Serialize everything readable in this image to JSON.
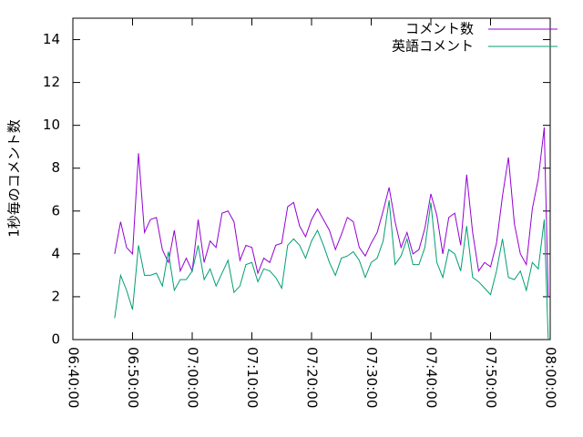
{
  "chart_data": {
    "type": "line",
    "ylabel": "1秒毎のコメント数",
    "x": [
      "06:47:00",
      "06:48:00",
      "06:49:00",
      "06:50:00",
      "06:51:00",
      "06:52:00",
      "06:53:00",
      "06:54:00",
      "06:55:00",
      "06:56:00",
      "06:57:00",
      "06:58:00",
      "06:59:00",
      "07:00:00",
      "07:01:00",
      "07:02:00",
      "07:03:00",
      "07:04:00",
      "07:05:00",
      "07:06:00",
      "07:07:00",
      "07:08:00",
      "07:09:00",
      "07:10:00",
      "07:11:00",
      "07:12:00",
      "07:13:00",
      "07:14:00",
      "07:15:00",
      "07:16:00",
      "07:17:00",
      "07:18:00",
      "07:19:00",
      "07:20:00",
      "07:21:00",
      "07:22:00",
      "07:23:00",
      "07:24:00",
      "07:25:00",
      "07:26:00",
      "07:27:00",
      "07:28:00",
      "07:29:00",
      "07:30:00",
      "07:31:00",
      "07:32:00",
      "07:33:00",
      "07:34:00",
      "07:35:00",
      "07:36:00",
      "07:37:00",
      "07:38:00",
      "07:39:00",
      "07:40:00",
      "07:41:00",
      "07:42:00",
      "07:43:00",
      "07:44:00",
      "07:45:00",
      "07:46:00",
      "07:47:00",
      "07:48:00",
      "07:49:00",
      "07:50:00",
      "07:51:00",
      "07:52:00",
      "07:53:00",
      "07:54:00",
      "07:55:00",
      "07:56:00",
      "07:57:00",
      "07:58:00",
      "07:59:00",
      "07:59:40"
    ],
    "series": [
      {
        "name": "コメント数",
        "color": "#9400d3",
        "values": [
          4.0,
          5.5,
          4.3,
          4.0,
          8.7,
          5.0,
          5.6,
          5.7,
          4.2,
          3.6,
          5.1,
          3.2,
          3.8,
          3.2,
          5.6,
          3.6,
          4.6,
          4.3,
          5.9,
          6.0,
          5.5,
          3.7,
          4.4,
          4.3,
          3.1,
          3.8,
          3.6,
          4.4,
          4.5,
          6.2,
          6.4,
          5.3,
          4.8,
          5.6,
          6.1,
          5.6,
          5.1,
          4.2,
          4.9,
          5.7,
          5.5,
          4.3,
          3.9,
          4.5,
          5.0,
          6.0,
          7.1,
          5.5,
          4.3,
          5.0,
          4.0,
          4.2,
          5.2,
          6.8,
          5.8,
          4.0,
          5.7,
          5.9,
          4.4,
          7.7,
          5.0,
          3.2,
          3.6,
          3.4,
          4.5,
          6.7,
          8.5,
          5.4,
          4.0,
          3.5,
          6.1,
          7.5,
          9.9,
          2.0
        ]
      },
      {
        "name": "英語コメント",
        "color": "#009e73",
        "values": [
          1.0,
          3.0,
          2.3,
          1.4,
          4.4,
          3.0,
          3.0,
          3.1,
          2.5,
          4.1,
          2.3,
          2.8,
          2.8,
          3.2,
          4.4,
          2.8,
          3.3,
          2.5,
          3.1,
          3.7,
          2.2,
          2.5,
          3.5,
          3.6,
          2.7,
          3.3,
          3.2,
          2.9,
          2.4,
          4.4,
          4.7,
          4.4,
          3.8,
          4.6,
          5.1,
          4.4,
          3.6,
          3.0,
          3.8,
          3.9,
          4.1,
          3.7,
          2.9,
          3.6,
          3.8,
          4.6,
          6.5,
          3.5,
          3.9,
          4.7,
          3.5,
          3.5,
          4.3,
          6.4,
          3.6,
          2.9,
          4.2,
          4.0,
          3.2,
          5.3,
          2.9,
          2.7,
          2.4,
          2.1,
          3.2,
          4.7,
          2.9,
          2.8,
          3.2,
          2.3,
          3.6,
          3.3,
          5.6,
          0.0
        ]
      }
    ],
    "xlim": [
      "06:40:00",
      "08:00:00"
    ],
    "xticks": [
      "06:40:00",
      "06:50:00",
      "07:00:00",
      "07:10:00",
      "07:20:00",
      "07:30:00",
      "07:40:00",
      "07:50:00",
      "08:00:00"
    ],
    "ylim": [
      0,
      15
    ],
    "yticks": [
      0,
      2,
      4,
      6,
      8,
      10,
      12,
      14
    ],
    "legend": "top-right",
    "grid": false
  }
}
